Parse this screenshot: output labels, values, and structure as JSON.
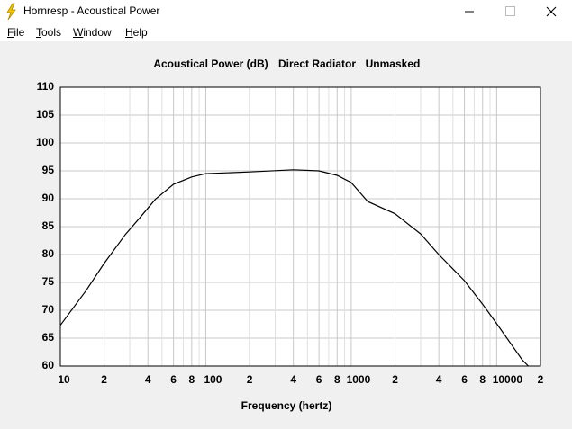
{
  "window": {
    "title": "Hornresp - Acoustical Power"
  },
  "menu": [
    "File",
    "Tools",
    "Window",
    "Help"
  ],
  "chart_data": {
    "type": "line",
    "title": [
      "Acoustical Power (dB)",
      "Direct Radiator",
      "Unmasked"
    ],
    "x_label": "Frequency (hertz)",
    "x_scale": "log",
    "grid": true,
    "color": "#000000",
    "xlim": [
      10,
      20000
    ],
    "ylim": [
      60,
      110
    ],
    "xticks": [
      10,
      {
        "value": 20,
        "label": "2"
      },
      {
        "value": 40,
        "label": "4"
      },
      {
        "value": 60,
        "label": "6"
      },
      {
        "value": 80,
        "label": "8"
      },
      100,
      {
        "value": 200,
        "label": "2"
      },
      {
        "value": 400,
        "label": "4"
      },
      {
        "value": 600,
        "label": "6"
      },
      {
        "value": 800,
        "label": "8"
      },
      1000,
      {
        "value": 2000,
        "label": "2"
      },
      {
        "value": 4000,
        "label": "4"
      },
      {
        "value": 6000,
        "label": "6"
      },
      {
        "value": 8000,
        "label": "8"
      },
      10000,
      {
        "value": 20000,
        "label": "2"
      }
    ],
    "xminorticks": [
      30,
      50,
      70,
      90,
      300,
      500,
      700,
      900,
      3000,
      5000,
      7000,
      9000
    ],
    "yticks": [
      60,
      65,
      70,
      75,
      80,
      85,
      90,
      95,
      100,
      105,
      110
    ],
    "x": [
      10,
      15,
      20,
      28,
      35,
      45,
      60,
      80,
      100,
      200,
      400,
      600,
      800,
      1000,
      1300,
      2000,
      3000,
      4000,
      6000,
      8000,
      10000,
      15000,
      16500
    ],
    "values": [
      67.3,
      73.5,
      78.4,
      83.6,
      86.5,
      89.9,
      92.6,
      93.9,
      94.5,
      94.8,
      95.2,
      95.0,
      94.2,
      92.9,
      89.5,
      87.3,
      83.7,
      80.0,
      75.3,
      71.1,
      67.6,
      61.1,
      60.0
    ]
  }
}
